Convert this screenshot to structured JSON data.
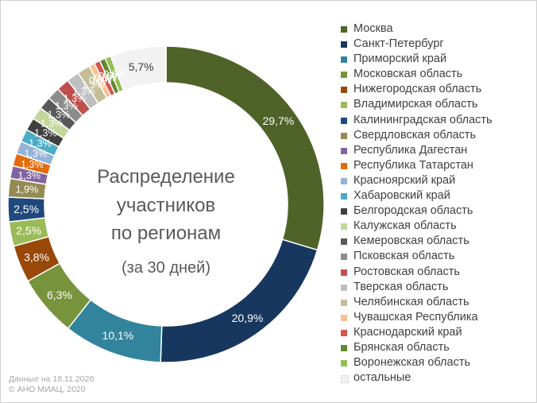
{
  "colors": {
    "background": "#ffffff",
    "label_light": "#ffffff",
    "label_dark": "#404040"
  },
  "title_lines": [
    "Распределение",
    "участников",
    "по регионам"
  ],
  "subtitle": "(за 30 дней)",
  "footer": {
    "line1": "Данные на 18.11.2020",
    "line2": "© АНО МИАЦ, 2020"
  },
  "chart_data": {
    "type": "pie",
    "variant": "donut",
    "value_unit": "%",
    "legend_position": "right",
    "slices": [
      {
        "name": "Москва",
        "value": 29.7,
        "label": "29,7%",
        "color": "#4f6228",
        "label_color": "light"
      },
      {
        "name": "Санкт-Петербург",
        "value": 20.9,
        "label": "20,9%",
        "color": "#17375e",
        "label_color": "light"
      },
      {
        "name": "Приморский край",
        "value": 10.1,
        "label": "10,1%",
        "color": "#31849b",
        "label_color": "light"
      },
      {
        "name": "Московская область",
        "value": 6.3,
        "label": "6,3%",
        "color": "#77933c",
        "label_color": "light"
      },
      {
        "name": "Нижегородская область",
        "value": 3.8,
        "label": "3,8%",
        "color": "#984807",
        "label_color": "light"
      },
      {
        "name": "Владимирская область",
        "value": 2.5,
        "label": "2,5%",
        "color": "#9bbb59",
        "label_color": "light"
      },
      {
        "name": "Калининградская область",
        "value": 2.5,
        "label": "2,5%",
        "color": "#1f497d",
        "label_color": "light"
      },
      {
        "name": "Свердловская область",
        "value": 1.9,
        "label": "1,9%",
        "color": "#948a54",
        "label_color": "light"
      },
      {
        "name": "Республика Дагестан",
        "value": 1.3,
        "label": "1,3%",
        "color": "#8064a2",
        "label_color": "light"
      },
      {
        "name": "Республика Татарстан",
        "value": 1.3,
        "label": "1,3%",
        "color": "#e46c0a",
        "label_color": "light"
      },
      {
        "name": "Красноярский край",
        "value": 1.3,
        "label": "1,3%",
        "color": "#95b3d7",
        "label_color": "light"
      },
      {
        "name": "Хабаровский край",
        "value": 1.3,
        "label": "1,3%",
        "color": "#4bacc6",
        "label_color": "light"
      },
      {
        "name": "Белгородская область",
        "value": 1.3,
        "label": "1,3%",
        "color": "#404040",
        "label_color": "light"
      },
      {
        "name": "Калужская область",
        "value": 1.3,
        "label": "1,3%",
        "color": "#c3d69b",
        "label_color": "light"
      },
      {
        "name": "Кемеровская область",
        "value": 1.3,
        "label": "1,3%",
        "color": "#595959",
        "label_color": "light"
      },
      {
        "name": "Псковская область",
        "value": 1.3,
        "label": "1,3%",
        "color": "#8c8c8c",
        "label_color": "light"
      },
      {
        "name": "Ростовская область",
        "value": 1.3,
        "label": "1,3%",
        "color": "#c0504d",
        "label_color": "light"
      },
      {
        "name": "Тверская область",
        "value": 1.3,
        "label": "1,3%",
        "color": "#bfbfbf",
        "label_color": "light"
      },
      {
        "name": "Челябинская область",
        "value": 1.3,
        "label": "1,3%",
        "color": "#c4bd97",
        "label_color": "light"
      },
      {
        "name": "Чувашская Республика",
        "value": 0.6,
        "label": "0,6%",
        "color": "#fac090",
        "label_color": "light"
      },
      {
        "name": "Краснодарский край",
        "value": 0.6,
        "label": "0,6%",
        "color": "#d9534f",
        "label_color": "light"
      },
      {
        "name": "Брянская область",
        "value": 0.6,
        "label": "0,6%",
        "color": "#5e8a2f",
        "label_color": "light"
      },
      {
        "name": "Воронежская область",
        "value": 0.6,
        "label": "0,6%",
        "color": "#92c050",
        "label_color": "light"
      },
      {
        "name": "остальные",
        "value": 5.7,
        "label": "5,7%",
        "color": "#f2f2f2",
        "label_color": "dark"
      }
    ]
  }
}
